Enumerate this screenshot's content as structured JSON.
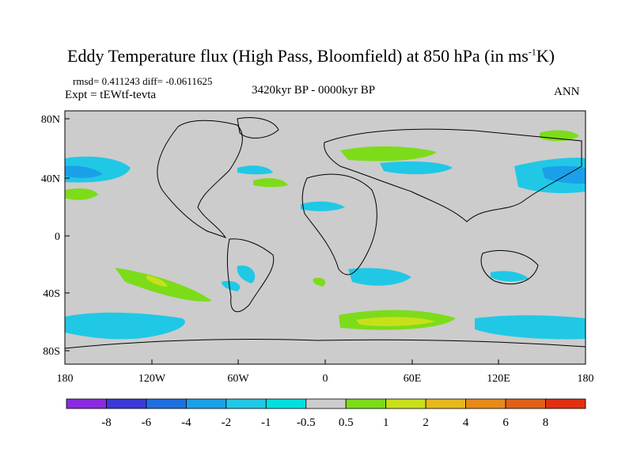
{
  "title": {
    "main": "Eddy Temperature flux (High Pass, Bloomfield) at 850 hPa (in ms",
    "sup": "-1",
    "tail": "K)"
  },
  "stats": "rmsd= 0.411243 diff= -0.0611625",
  "experiment": "Expt = tEWtf-tevta",
  "period": "3420kyr BP - 0000kyr BP",
  "season": "ANN",
  "axes": {
    "lat_labels": [
      "80N",
      "40N",
      "0",
      "40S",
      "80S"
    ],
    "lon_labels": [
      "180",
      "120W",
      "60W",
      "0",
      "60E",
      "120E",
      "180"
    ]
  },
  "colorbar": {
    "labels": [
      "-8",
      "-6",
      "-4",
      "-2",
      "-1",
      "-0.5",
      "0.5",
      "1",
      "2",
      "4",
      "6",
      "8"
    ],
    "colors": [
      "#8a2be2",
      "#3a3ad8",
      "#1e6fe0",
      "#1aa0e8",
      "#20c8e6",
      "#00e0e0",
      "#cccccc",
      "#7cdc1a",
      "#c8e01a",
      "#e8b81a",
      "#e88a18",
      "#e06018",
      "#e03010"
    ]
  },
  "colors": {
    "ocean_bg": "#cccccc",
    "coast": "#000000"
  }
}
